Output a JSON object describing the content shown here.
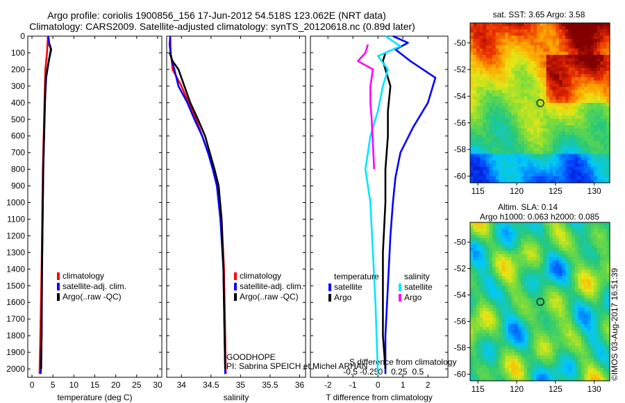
{
  "header": {
    "line1": "Argo profile: coriolis 1900856_156 17-Jun-2012 54.518S 123.062E (NRT data)",
    "line2": "Climatology: CARS2009. Satellite-adjusted climatology: synTS_20120618.nc (0.89d later)"
  },
  "credit": "©IMOS 03-Aug-2017 16:51:39",
  "project": {
    "name": "GOODHOPE",
    "pi": "PI: Sabrina SPEICH et Michel ARHAN"
  },
  "colors": {
    "climatology": "#ff0000",
    "satellite": "#0000ff",
    "argo": "#000000",
    "sat_salinity": "#00e5ff",
    "argo_salinity": "#ff00ff"
  },
  "chart_data": [
    {
      "id": "temperature",
      "type": "line",
      "xlabel": "temperature (deg C)",
      "xlim": [
        -1,
        31
      ],
      "ylim": [
        2050,
        0
      ],
      "xticks": [
        0,
        5,
        10,
        15,
        20,
        25,
        30
      ],
      "yticks": [
        0,
        100,
        200,
        300,
        400,
        500,
        600,
        700,
        800,
        900,
        1000,
        1100,
        1200,
        1300,
        1400,
        1500,
        1600,
        1700,
        1800,
        1900,
        2000
      ],
      "legend": [
        "climatology",
        "satellite-adj. clim.",
        "Argo(..raw -QC)"
      ],
      "series": [
        {
          "name": "climatology",
          "color": "#ff0000",
          "x": [
            3.8,
            3.6,
            3.2,
            3.0,
            2.8,
            2.6,
            2.5,
            2.3,
            2.0,
            1.8
          ],
          "y": [
            0,
            100,
            200,
            400,
            600,
            800,
            1000,
            1400,
            1800,
            2030
          ]
        },
        {
          "name": "satellite-adj. clim.",
          "color": "#0000ff",
          "x": [
            3.9,
            4.1,
            4.6,
            4.0,
            3.4,
            3.1,
            2.9,
            2.7,
            2.6,
            2.4,
            2.3,
            2.1
          ],
          "y": [
            0,
            40,
            80,
            150,
            250,
            400,
            600,
            800,
            1000,
            1400,
            1800,
            2030
          ]
        },
        {
          "name": "Argo(..raw -QC)",
          "color": "#000000",
          "x": [
            4.0,
            4.3,
            4.5,
            4.0,
            3.3,
            3.1,
            2.9,
            2.7,
            2.6,
            2.4,
            2.3,
            2.2
          ],
          "y": [
            50,
            60,
            80,
            150,
            250,
            400,
            600,
            800,
            1000,
            1400,
            1800,
            2000
          ]
        }
      ]
    },
    {
      "id": "salinity",
      "type": "line",
      "xlabel": "salinity",
      "xlim": [
        33.75,
        36.1
      ],
      "ylim": [
        2050,
        0
      ],
      "xticks": [
        34,
        34.5,
        35,
        35.5,
        36
      ],
      "xticklabels": [
        "34",
        "34.5",
        "35",
        "35.5",
        "36"
      ],
      "legend": [
        "climatology",
        "satellite-adj. clim.",
        "Argo(..raw -QC)"
      ],
      "series": [
        {
          "name": "climatology",
          "color": "#ff0000",
          "x": [
            33.81,
            33.82,
            33.85,
            34.0,
            34.12,
            34.25,
            34.35,
            34.45,
            34.55,
            34.62,
            34.68,
            34.72,
            34.74,
            34.75
          ],
          "y": [
            0,
            100,
            200,
            300,
            400,
            500,
            600,
            700,
            800,
            900,
            1100,
            1400,
            1800,
            2030
          ]
        },
        {
          "name": "satellite-adj. clim.",
          "color": "#0000ff",
          "x": [
            33.81,
            33.8,
            33.82,
            33.88,
            33.95,
            34.1,
            34.22,
            34.35,
            34.45,
            34.53,
            34.6,
            34.66,
            34.71,
            34.73,
            34.74
          ],
          "y": [
            0,
            50,
            120,
            200,
            300,
            400,
            500,
            600,
            700,
            800,
            900,
            1100,
            1400,
            1800,
            2030
          ]
        },
        {
          "name": "Argo(..raw -QC)",
          "color": "#000000",
          "x": [
            33.8,
            33.85,
            33.95,
            34.05,
            34.15,
            34.28,
            34.4,
            34.48,
            34.56,
            34.63,
            34.68,
            34.71,
            34.73,
            34.74
          ],
          "y": [
            100,
            150,
            200,
            300,
            400,
            500,
            600,
            700,
            800,
            900,
            1100,
            1400,
            1800,
            2000
          ]
        }
      ]
    },
    {
      "id": "difference",
      "type": "line",
      "xlabel": "T difference from climatology",
      "xlabel_top": "S difference from climatology",
      "xlim": [
        -2.7,
        2.8
      ],
      "ylim": [
        2050,
        0
      ],
      "xticks": [
        -2,
        -1,
        0,
        1,
        2
      ],
      "top_ticklabels": [
        "-0.5",
        "-0.25",
        "0",
        "0.25",
        "0.5"
      ],
      "legend_groups": [
        {
          "title": "temperature",
          "items": [
            "satellite",
            "Argo"
          ]
        },
        {
          "title": "salinity",
          "items": [
            "satellite",
            "Argo"
          ]
        }
      ],
      "series": [
        {
          "name": "temperature satellite",
          "color": "#0000ff",
          "x": [
            0.6,
            1.2,
            0.7,
            1.3,
            2.3,
            2.0,
            1.4,
            0.9,
            0.7,
            0.6,
            0.5,
            0.4,
            0.3,
            0.3
          ],
          "y": [
            0,
            40,
            80,
            150,
            250,
            400,
            550,
            700,
            850,
            1000,
            1200,
            1500,
            1800,
            2030
          ]
        },
        {
          "name": "temperature Argo",
          "color": "#000000",
          "x": [
            0.3,
            0.2,
            0.3,
            0.5,
            0.4,
            0.4,
            0.3,
            0.3,
            0.2,
            0.2,
            0.2,
            0.3
          ],
          "y": [
            100,
            150,
            200,
            300,
            450,
            600,
            800,
            1000,
            1300,
            1600,
            1800,
            2000
          ]
        },
        {
          "name": "salinity satellite",
          "color": "#00e5ff",
          "x": [
            0.3,
            0.9,
            0.0,
            0.4,
            0.2,
            0.0,
            -0.3,
            -0.5,
            -0.3,
            -0.2,
            -0.1,
            0.0
          ],
          "y": [
            0,
            60,
            120,
            200,
            300,
            450,
            600,
            800,
            1000,
            1300,
            1600,
            2030
          ]
        },
        {
          "name": "salinity Argo",
          "color": "#ff00ff",
          "x": [
            -0.4,
            -0.5,
            -0.8,
            -0.2,
            -0.3,
            -0.3,
            -0.25,
            -0.2,
            -0.15
          ],
          "y": [
            50,
            100,
            150,
            200,
            300,
            400,
            500,
            650,
            800
          ]
        }
      ]
    },
    {
      "id": "sst_map",
      "type": "heatmap",
      "title": "sat. SST: 3.65 Argo: 3.58",
      "xlim": [
        114,
        132
      ],
      "ylim": [
        -60.5,
        -48.5
      ],
      "xticks": [
        115,
        120,
        125,
        130
      ],
      "yticks": [
        -50,
        -52,
        -54,
        -56,
        -58,
        -60
      ],
      "marker": {
        "lon": 123.062,
        "lat": -54.518
      }
    },
    {
      "id": "sla_map",
      "type": "heatmap",
      "title": "Altim. SLA: 0.14",
      "subtitle": "Argo h1000: 0.063 h2000: 0.085",
      "xlim": [
        114,
        132
      ],
      "ylim": [
        -60.5,
        -48.5
      ],
      "xticks": [
        115,
        120,
        125,
        130
      ],
      "yticks": [
        -50,
        -52,
        -54,
        -56,
        -58,
        -60
      ],
      "marker": {
        "lon": 123.062,
        "lat": -54.518
      }
    }
  ]
}
